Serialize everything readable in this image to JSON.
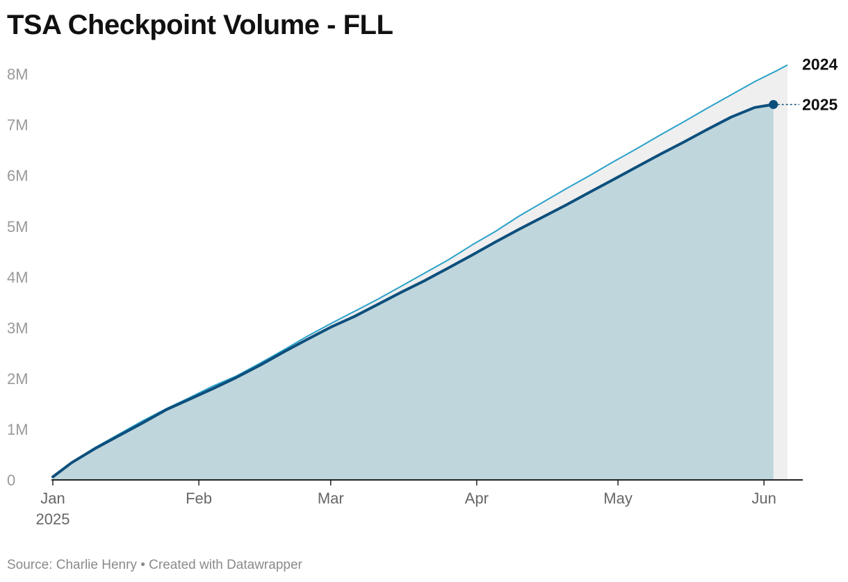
{
  "title": "TSA Checkpoint Volume - FLL",
  "footer": {
    "source_text": "Source: Charlie Henry",
    "separator": "•",
    "credit_text": "Created with Datawrapper"
  },
  "colors": {
    "series_2024": "#2aa1c9",
    "series_2025": "#0d4f7c",
    "area_2025": "#bfd6dd",
    "area_gap": "#efefef",
    "axis": "#222222",
    "tick_text": "#9a9a9a"
  },
  "chart_data": {
    "type": "area",
    "title": "TSA Checkpoint Volume - FLL",
    "xlabel": "",
    "ylabel": "",
    "x_unit": "day of year",
    "xlim": [
      1,
      157
    ],
    "ylim": [
      0,
      8200000
    ],
    "y_ticks": [
      {
        "value": 0,
        "label": "0"
      },
      {
        "value": 1000000,
        "label": "1M"
      },
      {
        "value": 2000000,
        "label": "2M"
      },
      {
        "value": 3000000,
        "label": "3M"
      },
      {
        "value": 4000000,
        "label": "4M"
      },
      {
        "value": 5000000,
        "label": "5M"
      },
      {
        "value": 6000000,
        "label": "6M"
      },
      {
        "value": 7000000,
        "label": "7M"
      },
      {
        "value": 8000000,
        "label": "8M"
      }
    ],
    "x_ticks": [
      {
        "day": 1,
        "label": "Jan",
        "sublabel": "2025"
      },
      {
        "day": 32,
        "label": "Feb",
        "sublabel": ""
      },
      {
        "day": 60,
        "label": "Mar",
        "sublabel": ""
      },
      {
        "day": 91,
        "label": "Apr",
        "sublabel": ""
      },
      {
        "day": 121,
        "label": "May",
        "sublabel": ""
      },
      {
        "day": 152,
        "label": "Jun",
        "sublabel": ""
      }
    ],
    "grid": false,
    "legend": "direct labels at line ends (right)",
    "series": [
      {
        "name": "2024",
        "points": [
          [
            1,
            60000
          ],
          [
            5,
            340000
          ],
          [
            10,
            640000
          ],
          [
            15,
            900000
          ],
          [
            20,
            1160000
          ],
          [
            25,
            1400000
          ],
          [
            30,
            1620000
          ],
          [
            35,
            1850000
          ],
          [
            40,
            2050000
          ],
          [
            45,
            2300000
          ],
          [
            50,
            2560000
          ],
          [
            55,
            2830000
          ],
          [
            60,
            3080000
          ],
          [
            65,
            3320000
          ],
          [
            70,
            3560000
          ],
          [
            75,
            3820000
          ],
          [
            80,
            4080000
          ],
          [
            85,
            4340000
          ],
          [
            90,
            4630000
          ],
          [
            95,
            4900000
          ],
          [
            100,
            5200000
          ],
          [
            105,
            5470000
          ],
          [
            110,
            5740000
          ],
          [
            115,
            6000000
          ],
          [
            120,
            6270000
          ],
          [
            125,
            6530000
          ],
          [
            130,
            6800000
          ],
          [
            135,
            7060000
          ],
          [
            140,
            7330000
          ],
          [
            145,
            7590000
          ],
          [
            150,
            7850000
          ],
          [
            155,
            8080000
          ],
          [
            157,
            8180000
          ]
        ]
      },
      {
        "name": "2025",
        "points": [
          [
            1,
            60000
          ],
          [
            5,
            340000
          ],
          [
            10,
            620000
          ],
          [
            15,
            870000
          ],
          [
            20,
            1120000
          ],
          [
            25,
            1380000
          ],
          [
            30,
            1590000
          ],
          [
            35,
            1800000
          ],
          [
            40,
            2020000
          ],
          [
            45,
            2260000
          ],
          [
            50,
            2520000
          ],
          [
            55,
            2770000
          ],
          [
            60,
            3010000
          ],
          [
            65,
            3220000
          ],
          [
            70,
            3460000
          ],
          [
            75,
            3700000
          ],
          [
            80,
            3930000
          ],
          [
            85,
            4180000
          ],
          [
            90,
            4430000
          ],
          [
            95,
            4690000
          ],
          [
            100,
            4940000
          ],
          [
            105,
            5180000
          ],
          [
            110,
            5420000
          ],
          [
            115,
            5670000
          ],
          [
            120,
            5920000
          ],
          [
            125,
            6170000
          ],
          [
            130,
            6420000
          ],
          [
            135,
            6660000
          ],
          [
            140,
            6910000
          ],
          [
            145,
            7150000
          ],
          [
            150,
            7340000
          ],
          [
            154,
            7400000
          ]
        ]
      }
    ]
  }
}
